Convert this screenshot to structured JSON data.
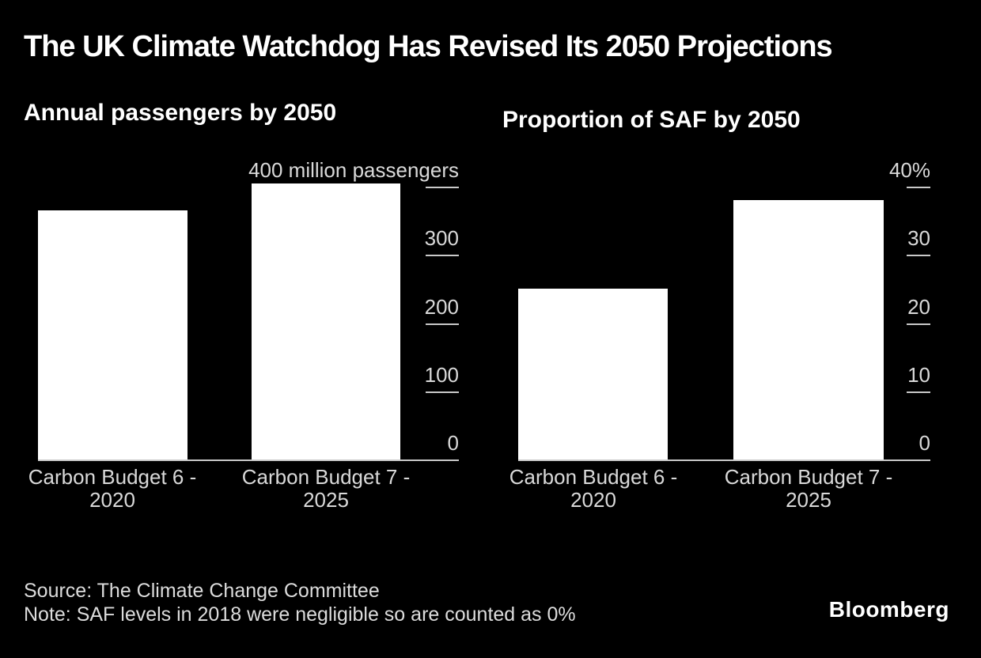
{
  "page": {
    "title": "The UK Climate Watchdog Has Revised Its 2050 Projections",
    "source": "Source: The Climate Change Committee",
    "note": "Note: SAF levels in 2018 were negligible so are counted as 0%",
    "brand": "Bloomberg"
  },
  "colors": {
    "background": "#000000",
    "bar_fill": "#ffffff",
    "heading_text": "#ffffff",
    "axis_text": "#d9d9d9",
    "axis_line": "#c9c9c9"
  },
  "chart_data": [
    {
      "type": "bar",
      "title": "Annual passengers by 2050",
      "categories": [
        [
          "Carbon Budget 6 -",
          "2020"
        ],
        [
          "Carbon Budget 7 -",
          "2025"
        ]
      ],
      "values": [
        365,
        405
      ],
      "value_unit": "million passengers",
      "ylim": [
        0,
        400
      ],
      "grid": false,
      "axis_side": "right",
      "axis_ticks": [
        {
          "value": 400,
          "label": "400 million passengers"
        },
        {
          "value": 300,
          "label": "300"
        },
        {
          "value": 200,
          "label": "200"
        },
        {
          "value": 100,
          "label": "100"
        },
        {
          "value": 0,
          "label": "0"
        }
      ]
    },
    {
      "type": "bar",
      "title": "Proportion of SAF by 2050",
      "categories": [
        [
          "Carbon Budget 6 -",
          "2020"
        ],
        [
          "Carbon Budget 7 -",
          "2025"
        ]
      ],
      "values": [
        25,
        38
      ],
      "value_unit": "%",
      "ylim": [
        0,
        40
      ],
      "grid": false,
      "axis_side": "right",
      "axis_ticks": [
        {
          "value": 40,
          "label": "40%"
        },
        {
          "value": 30,
          "label": "30"
        },
        {
          "value": 20,
          "label": "20"
        },
        {
          "value": 10,
          "label": "10"
        },
        {
          "value": 0,
          "label": "0"
        }
      ]
    }
  ]
}
